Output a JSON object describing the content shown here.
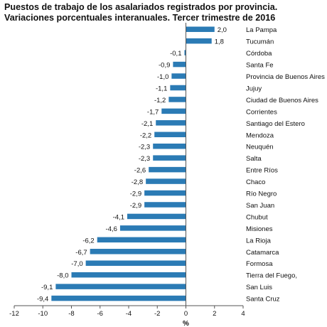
{
  "title_lines": [
    "Puestos de trabajo de los asalariados registrados por provincia.",
    "Variaciones porcentuales interanuales. Tercer trimestre de 2016"
  ],
  "colors": {
    "bar": "#2b7bb5",
    "axis": "#555555",
    "text": "#111111"
  },
  "chart_data": {
    "type": "bar",
    "orientation": "horizontal",
    "title": "Puestos de trabajo de los asalariados registrados por provincia. Variaciones porcentuales interanuales. Tercer trimestre de 2016",
    "xlabel": "%",
    "ylabel": "",
    "xlim": [
      -12,
      4
    ],
    "xticks": [
      -12,
      -10,
      -8,
      -6,
      -4,
      -2,
      0,
      2,
      4
    ],
    "grid": false,
    "categories": [
      "La Pampa",
      "Tucumán",
      "Córdoba",
      "Santa Fe",
      "Provincia de Buenos Aires",
      "Jujuy",
      "Ciudad de Buenos Aires",
      "Corrientes",
      "Santiago del Estero",
      "Mendoza",
      "Neuquén",
      "Salta",
      "Entre Ríos",
      "Chaco",
      "Río Negro",
      "San Juan",
      "Chubut",
      "Misiones",
      "La Rioja",
      "Catamarca",
      "Formosa",
      "Tierra del Fuego,",
      "San Luis",
      "Santa Cruz"
    ],
    "values": [
      2.0,
      1.8,
      -0.1,
      -0.9,
      -1.0,
      -1.1,
      -1.2,
      -1.7,
      -2.1,
      -2.2,
      -2.3,
      -2.3,
      -2.6,
      -2.8,
      -2.9,
      -2.9,
      -4.1,
      -4.6,
      -6.2,
      -6.7,
      -7.0,
      -8.0,
      -9.1,
      -9.4
    ],
    "value_labels": [
      "2,0",
      "1,8",
      "-0,1",
      "-0,9",
      "-1,0",
      "-1,1",
      "-1,2",
      "-1,7",
      "-2,1",
      "-2,2",
      "-2,3",
      "-2,3",
      "-2,6",
      "-2,8",
      "-2,9",
      "-2,9",
      "-4,1",
      "-4,6",
      "-6,2",
      "-6,7",
      "-7,0",
      "-8,0",
      "-9,1",
      "-9,4"
    ]
  }
}
